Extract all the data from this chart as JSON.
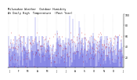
{
  "title_line1": "Milwaukee Weather  Outdoor Humidity",
  "title_line2": "At Daily High  Temperature  (Past Year)",
  "title_fontsize": 3.0,
  "bg_color": "#ffffff",
  "n_points": 365,
  "y_min": 0,
  "y_max": 100,
  "y_ticks": [
    20,
    40,
    60,
    80,
    100
  ],
  "y_tick_labels": [
    "20",
    "40",
    "60",
    "80",
    "100"
  ],
  "bar_color": "#0000cc",
  "scatter_color": "#cc0000",
  "grid_color": "#999999",
  "blue_mean": 35,
  "blue_std": 18,
  "red_mean": 38,
  "red_std": 15,
  "spike_indices": [
    85,
    155,
    195,
    205,
    225,
    228,
    270
  ],
  "spike_values": [
    95,
    70,
    98,
    92,
    88,
    75,
    65
  ]
}
